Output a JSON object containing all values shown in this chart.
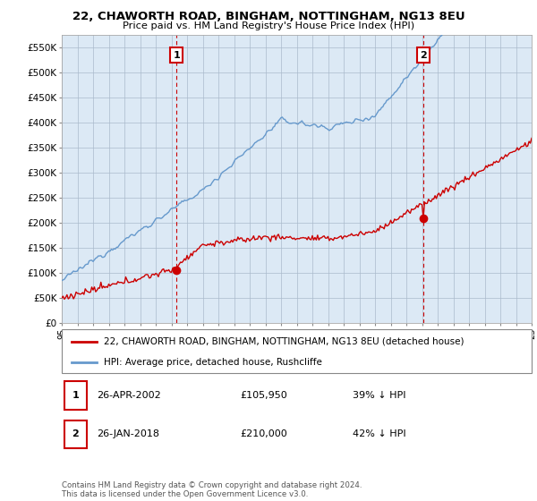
{
  "title": "22, CHAWORTH ROAD, BINGHAM, NOTTINGHAM, NG13 8EU",
  "subtitle": "Price paid vs. HM Land Registry's House Price Index (HPI)",
  "ylim": [
    0,
    575000
  ],
  "yticks": [
    0,
    50000,
    100000,
    150000,
    200000,
    250000,
    300000,
    350000,
    400000,
    450000,
    500000,
    550000
  ],
  "ytick_labels": [
    "£0",
    "£50K",
    "£100K",
    "£150K",
    "£200K",
    "£250K",
    "£300K",
    "£350K",
    "£400K",
    "£450K",
    "£500K",
    "£550K"
  ],
  "marker1_year": 2002.32,
  "marker1_value": 105950,
  "marker2_year": 2018.07,
  "marker2_value": 210000,
  "hpi_line_color": "#6699cc",
  "sale_line_color": "#cc0000",
  "marker_color": "#cc0000",
  "vline_color": "#cc0000",
  "plot_bg_color": "#dce9f5",
  "legend_label1": "22, CHAWORTH ROAD, BINGHAM, NOTTINGHAM, NG13 8EU (detached house)",
  "legend_label2": "HPI: Average price, detached house, Rushcliffe",
  "table_rows": [
    {
      "num": "1",
      "date": "26-APR-2002",
      "price": "£105,950",
      "pct": "39% ↓ HPI"
    },
    {
      "num": "2",
      "date": "26-JAN-2018",
      "price": "£210,000",
      "pct": "42% ↓ HPI"
    }
  ],
  "footnote": "Contains HM Land Registry data © Crown copyright and database right 2024.\nThis data is licensed under the Open Government Licence v3.0.",
  "bg_color": "#ffffff",
  "grid_color": "#aabbcc"
}
